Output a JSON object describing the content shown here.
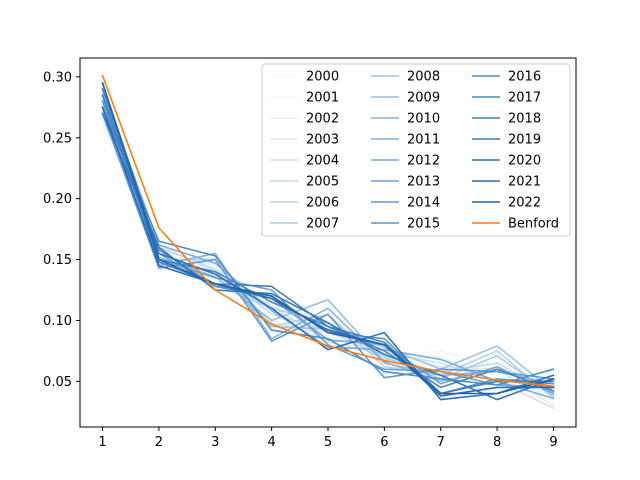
{
  "chart_data": {
    "type": "line",
    "title": "",
    "xlabel": "",
    "ylabel": "",
    "x": [
      1,
      2,
      3,
      4,
      5,
      6,
      7,
      8,
      9
    ],
    "xlim": [
      0.6,
      9.4
    ],
    "ylim": [
      0.0125,
      0.3155
    ],
    "xticks": [
      1,
      2,
      3,
      4,
      5,
      6,
      7,
      8,
      9
    ],
    "yticks": [
      0.05,
      0.1,
      0.15,
      0.2,
      0.25,
      0.3
    ],
    "ytick_labels": [
      "0.05",
      "0.10",
      "0.15",
      "0.20",
      "0.25",
      "0.30"
    ],
    "grid": false,
    "legend": {
      "placement": "top-right",
      "columns": 3
    },
    "series": [
      {
        "name": "2000",
        "color": "#f6fafe",
        "values": [
          0.275,
          0.165,
          0.135,
          0.105,
          0.088,
          0.072,
          0.06,
          0.055,
          0.045
        ]
      },
      {
        "name": "2001",
        "color": "#eef5fb",
        "values": [
          0.26,
          0.16,
          0.15,
          0.1,
          0.085,
          0.07,
          0.075,
          0.06,
          0.035
        ]
      },
      {
        "name": "2002",
        "color": "#e4eff8",
        "values": [
          0.27,
          0.158,
          0.145,
          0.092,
          0.095,
          0.068,
          0.07,
          0.05,
          0.04
        ]
      },
      {
        "name": "2003",
        "color": "#dae8f5",
        "values": [
          0.265,
          0.162,
          0.14,
          0.098,
          0.09,
          0.075,
          0.062,
          0.06,
          0.03
        ]
      },
      {
        "name": "2004",
        "color": "#cfe1f2",
        "values": [
          0.28,
          0.155,
          0.138,
          0.112,
          0.082,
          0.073,
          0.065,
          0.05,
          0.028
        ]
      },
      {
        "name": "2005",
        "color": "#c3daee",
        "values": [
          0.27,
          0.16,
          0.142,
          0.105,
          0.092,
          0.068,
          0.058,
          0.065,
          0.04
        ]
      },
      {
        "name": "2006",
        "color": "#b7d2eb",
        "values": [
          0.285,
          0.15,
          0.15,
          0.095,
          0.105,
          0.062,
          0.055,
          0.075,
          0.036
        ]
      },
      {
        "name": "2007",
        "color": "#abcbe7",
        "values": [
          0.29,
          0.158,
          0.13,
          0.11,
          0.098,
          0.07,
          0.052,
          0.071,
          0.038
        ]
      },
      {
        "name": "2008",
        "color": "#a0c4e3",
        "values": [
          0.27,
          0.148,
          0.14,
          0.095,
          0.093,
          0.078,
          0.06,
          0.079,
          0.042
        ]
      },
      {
        "name": "2009",
        "color": "#95bde0",
        "values": [
          0.275,
          0.152,
          0.136,
          0.1,
          0.117,
          0.066,
          0.05,
          0.06,
          0.045
        ]
      },
      {
        "name": "2010",
        "color": "#8ab6dc",
        "values": [
          0.28,
          0.145,
          0.155,
          0.085,
          0.11,
          0.065,
          0.055,
          0.058,
          0.048
        ]
      },
      {
        "name": "2011",
        "color": "#80afd9",
        "values": [
          0.29,
          0.162,
          0.147,
          0.108,
          0.078,
          0.076,
          0.068,
          0.05,
          0.036
        ]
      },
      {
        "name": "2012",
        "color": "#76a8d5",
        "values": [
          0.275,
          0.155,
          0.128,
          0.118,
          0.084,
          0.08,
          0.048,
          0.062,
          0.04
        ]
      },
      {
        "name": "2013",
        "color": "#6ca1d2",
        "values": [
          0.285,
          0.15,
          0.135,
          0.125,
          0.08,
          0.06,
          0.058,
          0.047,
          0.045
        ]
      },
      {
        "name": "2014",
        "color": "#639acf",
        "values": [
          0.27,
          0.143,
          0.15,
          0.083,
          0.105,
          0.053,
          0.06,
          0.058,
          0.052
        ]
      },
      {
        "name": "2015",
        "color": "#5a94cb",
        "values": [
          0.28,
          0.158,
          0.128,
          0.12,
          0.09,
          0.085,
          0.04,
          0.052,
          0.048
        ]
      },
      {
        "name": "2016",
        "color": "#518dc8",
        "values": [
          0.275,
          0.165,
          0.153,
          0.092,
          0.085,
          0.058,
          0.052,
          0.047,
          0.06
        ]
      },
      {
        "name": "2017",
        "color": "#4887c4",
        "values": [
          0.29,
          0.15,
          0.14,
          0.115,
          0.095,
          0.075,
          0.045,
          0.06,
          0.042
        ]
      },
      {
        "name": "2018",
        "color": "#3f80c1",
        "values": [
          0.285,
          0.148,
          0.13,
          0.128,
          0.095,
          0.082,
          0.04,
          0.05,
          0.05
        ]
      },
      {
        "name": "2019",
        "color": "#3779bd",
        "values": [
          0.27,
          0.16,
          0.125,
          0.122,
          0.098,
          0.072,
          0.055,
          0.035,
          0.052
        ]
      },
      {
        "name": "2020",
        "color": "#2f72b9",
        "values": [
          0.295,
          0.155,
          0.138,
          0.11,
          0.076,
          0.09,
          0.035,
          0.04,
          0.055
        ]
      },
      {
        "name": "2021",
        "color": "#286bb5",
        "values": [
          0.275,
          0.145,
          0.13,
          0.118,
          0.092,
          0.08,
          0.038,
          0.045,
          0.045
        ]
      },
      {
        "name": "2022",
        "color": "#2163ae",
        "values": [
          0.295,
          0.15,
          0.13,
          0.12,
          0.09,
          0.08,
          0.04,
          0.04,
          0.052
        ]
      },
      {
        "name": "Benford",
        "color": "#ff7f0e",
        "values": [
          0.301,
          0.176,
          0.125,
          0.097,
          0.079,
          0.067,
          0.058,
          0.051,
          0.046
        ]
      }
    ]
  }
}
